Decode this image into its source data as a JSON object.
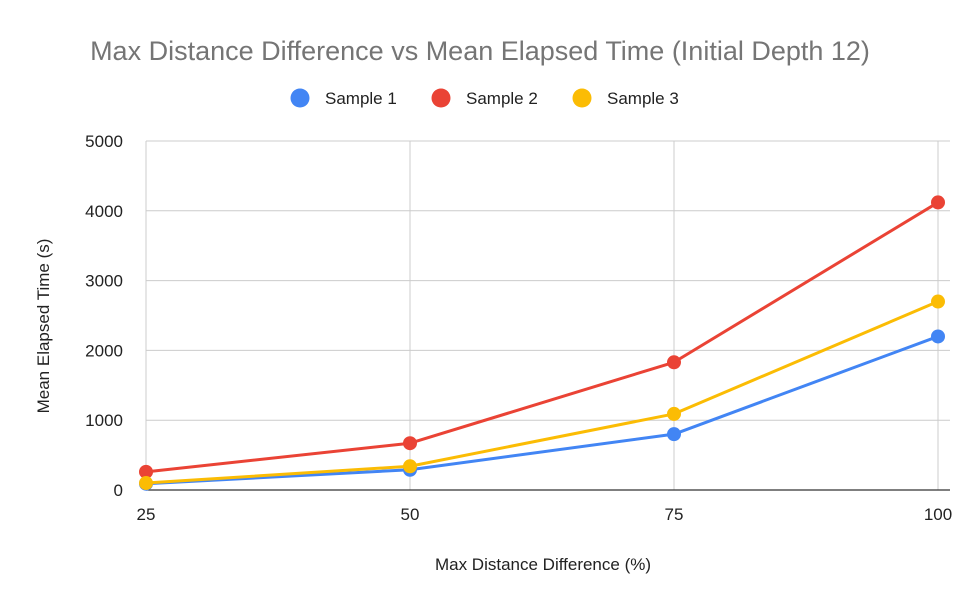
{
  "chart_data": {
    "type": "line",
    "title": "Max Distance Difference vs Mean Elapsed Time (Initial Depth 12)",
    "xlabel": "Max Distance Difference (%)",
    "ylabel": "Mean Elapsed Time (s)",
    "x": [
      25,
      50,
      75,
      100
    ],
    "x_ticks": [
      "25",
      "50",
      "75",
      "100"
    ],
    "y_ticks": [
      "0",
      "1000",
      "2000",
      "3000",
      "4000",
      "5000"
    ],
    "ylim": [
      0,
      5000
    ],
    "grid": true,
    "legend_position": "top",
    "series": [
      {
        "name": "Sample 1",
        "color": "#4285F4",
        "values": [
          90,
          290,
          800,
          2200
        ]
      },
      {
        "name": "Sample 2",
        "color": "#EA4335",
        "values": [
          260,
          670,
          1830,
          4120
        ]
      },
      {
        "name": "Sample 3",
        "color": "#FBBC04",
        "values": [
          100,
          340,
          1090,
          2700
        ]
      }
    ]
  }
}
